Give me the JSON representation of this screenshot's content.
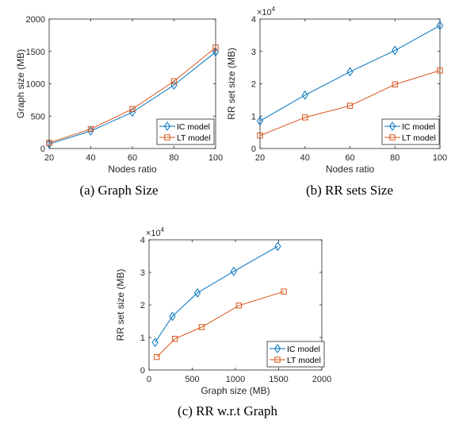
{
  "colors": {
    "ic": "#0072BD",
    "lt": "#D95319"
  },
  "legend": {
    "ic": "IC model",
    "lt": "LT model"
  },
  "chart_data": [
    {
      "type": "line",
      "caption": "(a)  Graph Size",
      "xlabel": "Nodes ratio",
      "ylabel": "Graph size (MB)",
      "exponent": "",
      "xlim": [
        20,
        100
      ],
      "ylim": [
        0,
        2000
      ],
      "xticks": [
        20,
        40,
        60,
        80,
        100
      ],
      "yticks": [
        0,
        500,
        1000,
        1500,
        2000
      ],
      "series": [
        {
          "name": "IC model",
          "marker": "diamond",
          "x": [
            20,
            40,
            60,
            80,
            100
          ],
          "y": [
            70,
            270,
            560,
            980,
            1490
          ]
        },
        {
          "name": "LT model",
          "marker": "square",
          "x": [
            20,
            40,
            60,
            80,
            100
          ],
          "y": [
            90,
            300,
            610,
            1040,
            1560
          ]
        }
      ]
    },
    {
      "type": "line",
      "caption": "(b)  RR sets Size",
      "xlabel": "Nodes ratio",
      "ylabel": "RR set size (MB)",
      "exponent": "×10^4",
      "xlim": [
        20,
        100
      ],
      "ylim": [
        0,
        40000
      ],
      "xticks": [
        20,
        40,
        60,
        80,
        100
      ],
      "yticks": [
        0,
        10000,
        20000,
        30000,
        40000
      ],
      "yticklabels": [
        "0",
        "1",
        "2",
        "3",
        "4"
      ],
      "series": [
        {
          "name": "IC model",
          "marker": "diamond",
          "x": [
            20,
            40,
            60,
            80,
            100
          ],
          "y": [
            8500,
            16500,
            23700,
            30300,
            38000
          ]
        },
        {
          "name": "LT model",
          "marker": "square",
          "x": [
            20,
            40,
            60,
            80,
            100
          ],
          "y": [
            4000,
            9600,
            13200,
            19800,
            24100
          ]
        }
      ]
    },
    {
      "type": "line",
      "caption": "(c)  RR w.r.t Graph",
      "xlabel": "Graph size (MB)",
      "ylabel": "RR set size (MB)",
      "exponent": "×10^4",
      "xlim": [
        0,
        2000
      ],
      "ylim": [
        0,
        40000
      ],
      "xticks": [
        0,
        500,
        1000,
        1500,
        2000
      ],
      "yticks": [
        0,
        10000,
        20000,
        30000,
        40000
      ],
      "yticklabels": [
        "0",
        "1",
        "2",
        "3",
        "4"
      ],
      "series": [
        {
          "name": "IC model",
          "marker": "diamond",
          "x": [
            70,
            270,
            560,
            980,
            1490
          ],
          "y": [
            8500,
            16500,
            23700,
            30300,
            38000
          ]
        },
        {
          "name": "LT model",
          "marker": "square",
          "x": [
            90,
            300,
            610,
            1040,
            1560
          ],
          "y": [
            4000,
            9600,
            13200,
            19800,
            24100
          ]
        }
      ]
    }
  ]
}
